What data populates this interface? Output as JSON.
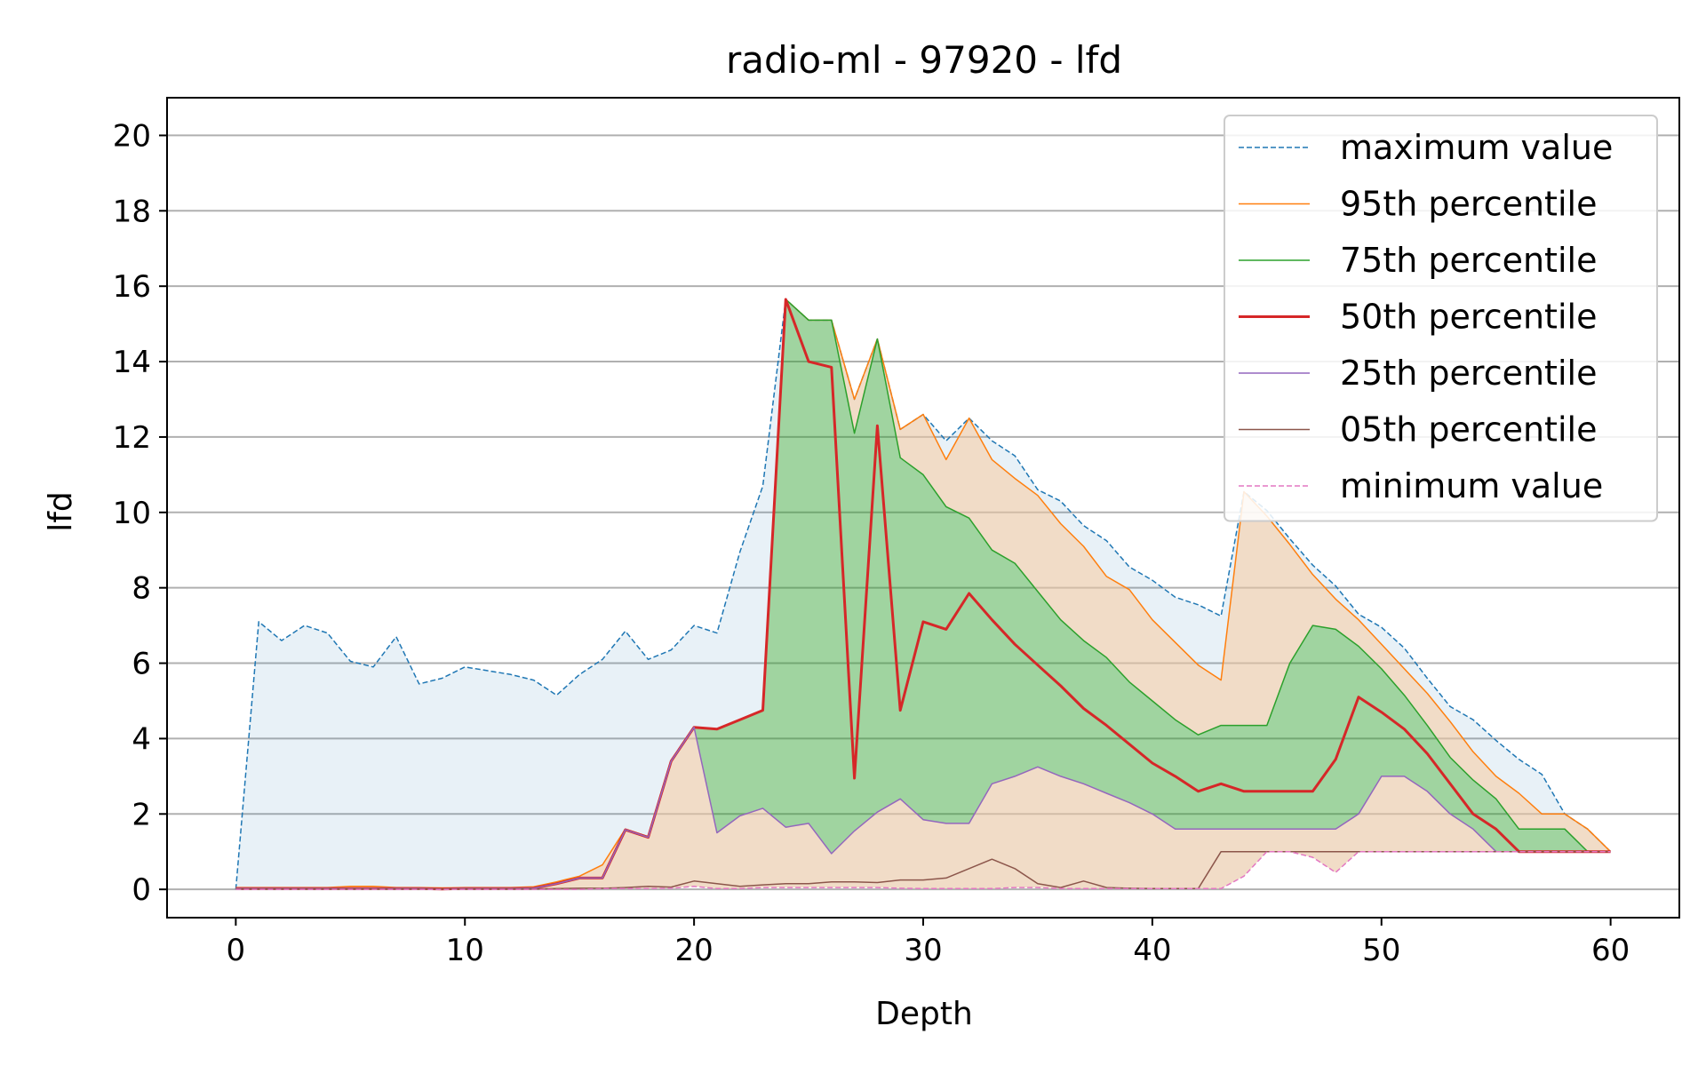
{
  "chart_data": {
    "type": "line",
    "title": "radio-ml - 97920 - lfd",
    "xlabel": "Depth",
    "ylabel": "lfd",
    "xlim": [
      -3,
      63
    ],
    "ylim": [
      -0.75,
      21
    ],
    "xticks": [
      0,
      10,
      20,
      30,
      40,
      50,
      60
    ],
    "yticks": [
      0,
      2,
      4,
      6,
      8,
      10,
      12,
      14,
      16,
      18,
      20
    ],
    "grid": "horizontal",
    "legend_position": "top-right",
    "x": [
      0,
      1,
      2,
      3,
      4,
      5,
      6,
      7,
      8,
      9,
      10,
      11,
      12,
      13,
      14,
      15,
      16,
      17,
      18,
      19,
      20,
      21,
      22,
      23,
      24,
      25,
      26,
      27,
      28,
      29,
      30,
      31,
      32,
      33,
      34,
      35,
      36,
      37,
      38,
      39,
      40,
      41,
      42,
      43,
      44,
      45,
      46,
      47,
      48,
      49,
      50,
      51,
      52,
      53,
      54,
      55,
      56,
      57,
      58,
      59,
      60
    ],
    "series": [
      {
        "name": "maximum value",
        "key": "max",
        "color": "#1f77b4",
        "style": "dashed",
        "width": 1.5,
        "values": [
          0,
          7.1,
          6.6,
          7.0,
          6.8,
          6.05,
          5.9,
          6.7,
          5.45,
          5.6,
          5.9,
          5.8,
          5.7,
          5.55,
          5.15,
          5.7,
          6.1,
          6.85,
          6.1,
          6.35,
          7.0,
          6.8,
          8.95,
          10.7,
          15.65,
          15.1,
          15.1,
          13.0,
          14.6,
          12.2,
          12.6,
          11.9,
          12.5,
          11.9,
          11.5,
          10.6,
          10.3,
          9.65,
          9.25,
          8.55,
          8.2,
          7.75,
          7.55,
          7.25,
          10.55,
          10.05,
          9.3,
          8.6,
          8.05,
          7.3,
          6.95,
          6.4,
          5.6,
          4.85,
          4.5,
          3.95,
          3.45,
          3.05,
          2.0,
          1.6,
          1.0
        ]
      },
      {
        "name": "95th percentile",
        "key": "p95",
        "color": "#ff7f0e",
        "style": "solid",
        "width": 1.5,
        "values": [
          0.05,
          0.05,
          0.05,
          0.05,
          0.05,
          0.08,
          0.08,
          0.05,
          0.05,
          0.04,
          0.05,
          0.05,
          0.05,
          0.07,
          0.2,
          0.35,
          0.65,
          1.6,
          1.4,
          3.4,
          4.3,
          4.25,
          4.5,
          4.75,
          15.65,
          15.1,
          15.1,
          13.0,
          14.6,
          12.2,
          12.6,
          11.4,
          12.5,
          11.4,
          10.9,
          10.45,
          9.7,
          9.1,
          8.3,
          7.95,
          7.15,
          6.55,
          5.95,
          5.55,
          10.55,
          9.9,
          9.15,
          8.35,
          7.7,
          7.15,
          6.5,
          5.85,
          5.2,
          4.45,
          3.65,
          3.0,
          2.55,
          2.0,
          2.0,
          1.6,
          1.0
        ]
      },
      {
        "name": "75th percentile",
        "key": "p75",
        "color": "#2ca02c",
        "style": "solid",
        "width": 1.5,
        "values": [
          0.02,
          0.02,
          0.02,
          0.02,
          0.02,
          0.03,
          0.03,
          0.02,
          0.02,
          0.01,
          0.02,
          0.02,
          0.02,
          0.04,
          0.15,
          0.3,
          0.3,
          1.58,
          1.38,
          3.4,
          4.3,
          4.25,
          4.5,
          4.75,
          15.65,
          15.1,
          15.1,
          12.1,
          14.6,
          11.45,
          11.0,
          10.15,
          9.85,
          9.0,
          8.65,
          7.9,
          7.15,
          6.6,
          6.15,
          5.5,
          5.0,
          4.5,
          4.1,
          4.35,
          4.35,
          4.35,
          6.0,
          7.0,
          6.9,
          6.45,
          5.85,
          5.15,
          4.35,
          3.5,
          2.9,
          2.4,
          1.6,
          1.6,
          1.6,
          1.0,
          1.0
        ]
      },
      {
        "name": "50th percentile",
        "key": "p50",
        "color": "#d62728",
        "style": "solid",
        "width": 3,
        "values": [
          0.02,
          0.02,
          0.02,
          0.02,
          0.02,
          0.02,
          0.02,
          0.02,
          0.02,
          0.01,
          0.02,
          0.02,
          0.02,
          0.03,
          0.15,
          0.3,
          0.3,
          1.58,
          1.38,
          3.4,
          4.3,
          4.25,
          4.5,
          4.75,
          15.65,
          14.0,
          13.85,
          2.95,
          12.3,
          4.75,
          7.1,
          6.9,
          7.85,
          7.15,
          6.5,
          5.95,
          5.4,
          4.8,
          4.35,
          3.85,
          3.35,
          3.0,
          2.6,
          2.8,
          2.6,
          2.6,
          2.6,
          2.6,
          3.45,
          5.1,
          4.7,
          4.25,
          3.6,
          2.8,
          2.0,
          1.6,
          1.0,
          1.0,
          1.0,
          1.0,
          1.0
        ]
      },
      {
        "name": "25th percentile",
        "key": "p25",
        "color": "#9467bd",
        "style": "solid",
        "width": 1.5,
        "values": [
          0.02,
          0.02,
          0.02,
          0.02,
          0.02,
          0.02,
          0.02,
          0.02,
          0.02,
          0.01,
          0.02,
          0.02,
          0.02,
          0.03,
          0.15,
          0.3,
          0.3,
          1.58,
          1.38,
          3.4,
          4.3,
          1.5,
          1.95,
          2.15,
          1.65,
          1.75,
          0.95,
          1.55,
          2.05,
          2.4,
          1.85,
          1.75,
          1.75,
          2.8,
          3.0,
          3.25,
          3.0,
          2.8,
          2.55,
          2.3,
          2.0,
          1.6,
          1.6,
          1.6,
          1.6,
          1.6,
          1.6,
          1.6,
          1.6,
          2.0,
          3.0,
          3.0,
          2.6,
          2.0,
          1.6,
          1.0,
          1.0,
          1.0,
          1.0,
          1.0,
          1.0
        ]
      },
      {
        "name": "05th percentile",
        "key": "p05",
        "color": "#8c564b",
        "style": "solid",
        "width": 1.5,
        "values": [
          0.01,
          0.01,
          0.01,
          0.01,
          0.01,
          0.01,
          0.01,
          0.01,
          0.01,
          0.01,
          0.01,
          0.01,
          0.01,
          0.01,
          0.02,
          0.03,
          0.03,
          0.05,
          0.08,
          0.06,
          0.22,
          0.15,
          0.08,
          0.12,
          0.15,
          0.15,
          0.2,
          0.2,
          0.18,
          0.25,
          0.25,
          0.3,
          0.55,
          0.8,
          0.55,
          0.15,
          0.05,
          0.22,
          0.05,
          0.03,
          0.02,
          0.02,
          0.02,
          1.0,
          1.0,
          1.0,
          1.0,
          1.0,
          1.0,
          1.0,
          1.0,
          1.0,
          1.0,
          1.0,
          1.0,
          1.0,
          1.0,
          1.0,
          1.0,
          1.0,
          1.0
        ]
      },
      {
        "name": "minimum value",
        "key": "min",
        "color": "#e377c2",
        "style": "dashed",
        "width": 1.5,
        "values": [
          0,
          0,
          0,
          0,
          0,
          0,
          0,
          0,
          0,
          0,
          0,
          0,
          0,
          0,
          0,
          0,
          0.02,
          0.02,
          0.02,
          0.03,
          0.08,
          0.02,
          0.02,
          0.05,
          0.05,
          0.05,
          0.05,
          0.05,
          0.05,
          0.03,
          0.02,
          0.02,
          0.02,
          0.02,
          0.05,
          0.05,
          0.02,
          0.02,
          0.02,
          0.02,
          0.02,
          0.02,
          0.02,
          0.02,
          0.35,
          1.0,
          1.0,
          0.85,
          0.45,
          1.0,
          1.0,
          1.0,
          1.0,
          1.0,
          1.0,
          1.0,
          1.0,
          1.0,
          1.0,
          1.0,
          1.0
        ]
      }
    ],
    "bands": [
      {
        "name": "max-p95",
        "upper": "max",
        "lower": "p95",
        "color": "#1f77b4",
        "opacity": 0.1
      },
      {
        "name": "p95-p75",
        "upper": "p95",
        "lower": "p75",
        "color": "#e8c4a2",
        "opacity": 0.6
      },
      {
        "name": "p75-p25",
        "upper": "p75",
        "lower": "p25",
        "color": "#2ca02c",
        "opacity": 0.45
      },
      {
        "name": "p25-min",
        "upper": "p25",
        "lower": "min",
        "color": "#e8c4a2",
        "opacity": 0.6
      }
    ]
  }
}
